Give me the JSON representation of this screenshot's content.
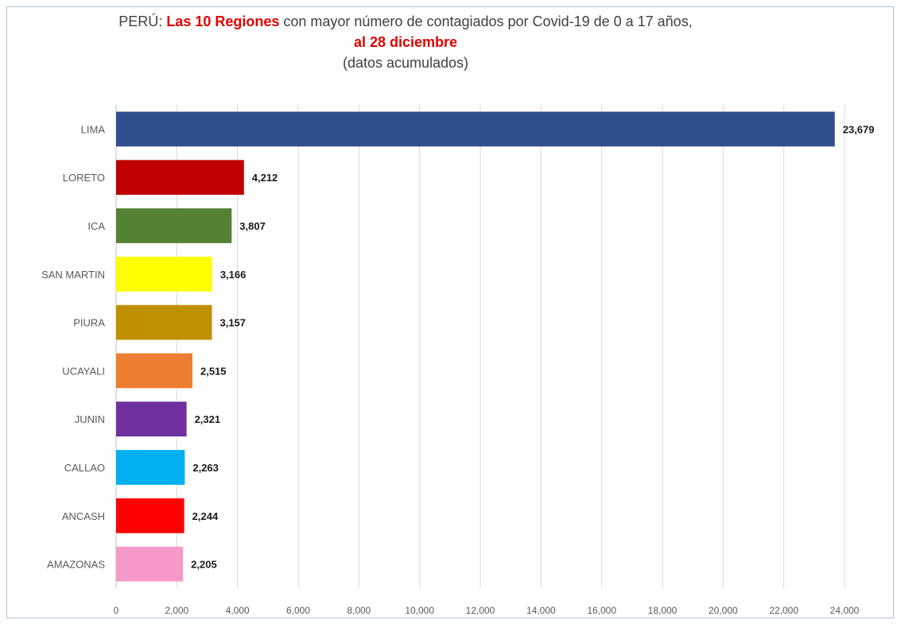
{
  "title": {
    "prefix": "PERÚ: ",
    "highlight": "Las 10 Regiones",
    "suffix": " con mayor número de contagiados por Covid-19 de 0 a 17 años,",
    "date": "al 28 diciembre",
    "note": "(datos acumulados)"
  },
  "chart_data": {
    "type": "bar",
    "orientation": "horizontal",
    "categories": [
      "LIMA",
      "LORETO",
      "ICA",
      "SAN MARTIN",
      "PIURA",
      "UCAYALI",
      "JUNIN",
      "CALLAO",
      "ANCASH",
      "AMAZONAS"
    ],
    "values": [
      23679,
      4212,
      3807,
      3166,
      3157,
      2515,
      2321,
      2263,
      2244,
      2205
    ],
    "value_labels": [
      "23,679",
      "4,212",
      "3,807",
      "3,166",
      "3,157",
      "2,515",
      "2,321",
      "2,263",
      "2,244",
      "2,205"
    ],
    "colors": [
      "#2f4f8f",
      "#c00000",
      "#548235",
      "#ffff00",
      "#bf9000",
      "#ed7d31",
      "#7030a0",
      "#00b0f0",
      "#ff0000",
      "#f59ac8"
    ],
    "xlim": [
      0,
      24000
    ],
    "x_ticks": [
      0,
      2000,
      4000,
      6000,
      8000,
      10000,
      12000,
      14000,
      16000,
      18000,
      20000,
      22000,
      24000
    ],
    "x_tick_labels": [
      "0",
      "2,000",
      "4,000",
      "6,000",
      "8,000",
      "10,000",
      "12,000",
      "14,000",
      "16,000",
      "18,000",
      "20,000",
      "22,000",
      "24,000"
    ],
    "grid": true,
    "legend": false
  }
}
